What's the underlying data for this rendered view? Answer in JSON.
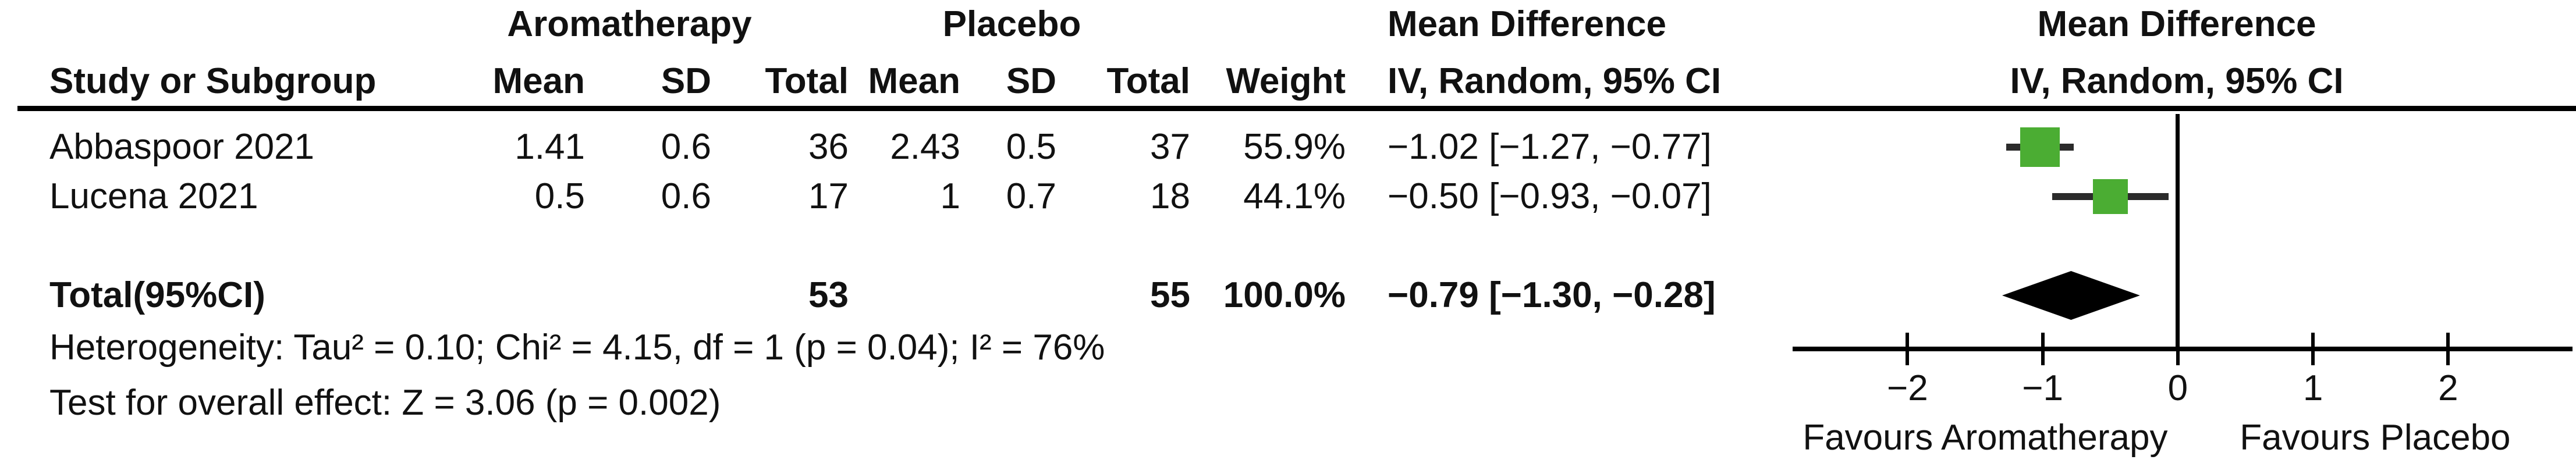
{
  "table": {
    "group_headers": {
      "treatment": "Aromatherapy",
      "control": "Placebo",
      "effect_text": "Mean Difference",
      "effect_plot": "Mean Difference"
    },
    "col_headers": {
      "study": "Study or Subgroup",
      "t_mean": "Mean",
      "t_sd": "SD",
      "t_total": "Total",
      "c_mean": "Mean",
      "c_sd": "SD",
      "c_total": "Total",
      "weight": "Weight",
      "ci": "IV, Random, 95% CI",
      "ci_plot": "IV, Random, 95% CI"
    },
    "rows": [
      {
        "study": "Abbaspoor 2021",
        "t_mean": "1.41",
        "t_sd": "0.6",
        "t_total": "36",
        "c_mean": "2.43",
        "c_sd": "0.5",
        "c_total": "37",
        "weight": "55.9%",
        "ci_text": "−1.02 [−1.27, −0.77]"
      },
      {
        "study": "Lucena 2021",
        "t_mean": "0.5",
        "t_sd": "0.6",
        "t_total": "17",
        "c_mean": "1",
        "c_sd": "0.7",
        "c_total": "18",
        "weight": "44.1%",
        "ci_text": "−0.50 [−0.93, −0.07]"
      }
    ],
    "total_row": {
      "label": "Total(95%CI)",
      "t_total": "53",
      "c_total": "55",
      "weight": "100.0%",
      "ci_text": "−0.79 [−1.30, −0.28]"
    }
  },
  "footer": {
    "heterogeneity": "Heterogeneity: Tau² = 0.10; Chi² = 4.15, df = 1 (p = 0.04); I² = 76%",
    "overall_effect": "Test for overall effect: Z = 3.06 (p = 0.002)"
  },
  "chart_data": {
    "type": "forest",
    "effect_measure": "Mean Difference",
    "model": "IV, Random, 95% CI",
    "x_axis": {
      "min": -2.85,
      "max": 2.92,
      "ticks": [
        -2,
        -1,
        0,
        1,
        2
      ],
      "tick_labels": [
        "−2",
        "−1",
        "0",
        "1",
        "2"
      ]
    },
    "studies": [
      {
        "name": "Abbaspoor 2021",
        "estimate": -1.02,
        "ci_low": -1.27,
        "ci_high": -0.77,
        "weight_pct": 55.9
      },
      {
        "name": "Lucena 2021",
        "estimate": -0.5,
        "ci_low": -0.93,
        "ci_high": -0.07,
        "weight_pct": 44.1
      }
    ],
    "total": {
      "estimate": -0.79,
      "ci_low": -1.3,
      "ci_high": -0.28
    },
    "favours_left": "Favours Aromatherapy",
    "favours_right": "Favours Placebo",
    "marker_color": "#4BAD33",
    "diamond_color": "#000000",
    "line_color": "#000000"
  }
}
